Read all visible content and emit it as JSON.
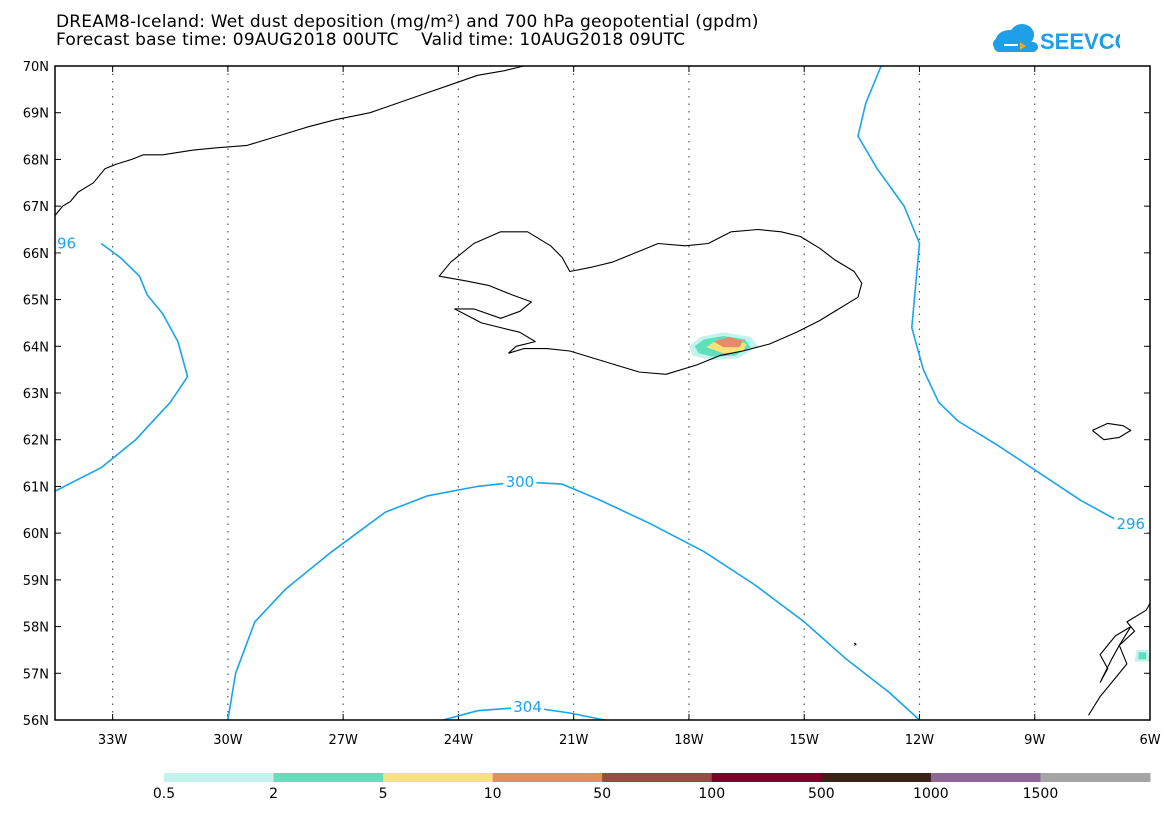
{
  "title_line1": "DREAM8-Iceland: Wet dust deposition (mg/m²) and 700 hPa geopotential (gpdm)",
  "title_line2": "Forecast base time: 09AUG2018 00UTC    Valid time: 10AUG2018 09UTC",
  "logo_text": "SEEVCCC",
  "colors": {
    "contour": "#19a4ee",
    "coast": "#000000",
    "grid": "#555555"
  },
  "map": {
    "lon_range": [
      -34.5,
      -6
    ],
    "lat_range": [
      56,
      70
    ],
    "lon_ticks": [
      {
        "value": -33,
        "label": "33W"
      },
      {
        "value": -30,
        "label": "30W"
      },
      {
        "value": -27,
        "label": "27W"
      },
      {
        "value": -24,
        "label": "24W"
      },
      {
        "value": -21,
        "label": "21W"
      },
      {
        "value": -18,
        "label": "18W"
      },
      {
        "value": -15,
        "label": "15W"
      },
      {
        "value": -12,
        "label": "12W"
      },
      {
        "value": -9,
        "label": "9W"
      },
      {
        "value": -6,
        "label": "6W"
      }
    ],
    "lat_ticks": [
      {
        "value": 70,
        "label": "70N"
      },
      {
        "value": 69,
        "label": "69N"
      },
      {
        "value": 68,
        "label": "68N"
      },
      {
        "value": 67,
        "label": "67N"
      },
      {
        "value": 66,
        "label": "66N"
      },
      {
        "value": 65,
        "label": "65N"
      },
      {
        "value": 64,
        "label": "64N"
      },
      {
        "value": 63,
        "label": "63N"
      },
      {
        "value": 62,
        "label": "62N"
      },
      {
        "value": 61,
        "label": "61N"
      },
      {
        "value": 60,
        "label": "60N"
      },
      {
        "value": 59,
        "label": "59N"
      },
      {
        "value": 58,
        "label": "58N"
      },
      {
        "value": 57,
        "label": "57N"
      },
      {
        "value": 56,
        "label": "56N"
      }
    ],
    "contours": [
      {
        "label": "96",
        "label_at": [
          -34.2,
          66.2
        ],
        "points": [
          [
            -33.3,
            66.2
          ],
          [
            -32.8,
            65.9
          ],
          [
            -32.3,
            65.5
          ],
          [
            -32.1,
            65.1
          ],
          [
            -31.7,
            64.7
          ],
          [
            -31.3,
            64.1
          ],
          [
            -31.05,
            63.35
          ],
          [
            -31.5,
            62.8
          ],
          [
            -32.4,
            62.0
          ],
          [
            -33.3,
            61.4
          ],
          [
            -34.5,
            60.9
          ]
        ]
      },
      {
        "label": "300",
        "label_at": [
          -22.4,
          61.1
        ],
        "points": [
          [
            -30.0,
            56.0
          ],
          [
            -29.8,
            57.0
          ],
          [
            -29.3,
            58.1
          ],
          [
            -28.5,
            58.8
          ],
          [
            -27.3,
            59.6
          ],
          [
            -25.9,
            60.45
          ],
          [
            -24.8,
            60.8
          ],
          [
            -23.5,
            61.0
          ],
          [
            -22.4,
            61.1
          ],
          [
            -21.3,
            61.05
          ],
          [
            -20.3,
            60.7
          ],
          [
            -19.0,
            60.2
          ],
          [
            -17.6,
            59.6
          ],
          [
            -16.3,
            58.9
          ],
          [
            -15.0,
            58.1
          ],
          [
            -13.9,
            57.3
          ],
          [
            -12.8,
            56.6
          ],
          [
            -12.0,
            56.0
          ]
        ]
      },
      {
        "label": "304",
        "label_at": [
          -22.2,
          56.28
        ],
        "points": [
          [
            -24.4,
            56.0
          ],
          [
            -23.5,
            56.2
          ],
          [
            -22.2,
            56.28
          ],
          [
            -21.1,
            56.15
          ],
          [
            -20.2,
            56.0
          ]
        ]
      },
      {
        "label": "296",
        "label_at": [
          -6.5,
          60.2
        ],
        "points": [
          [
            -13.0,
            70.0
          ],
          [
            -13.4,
            69.2
          ],
          [
            -13.6,
            68.5
          ],
          [
            -13.1,
            67.8
          ],
          [
            -12.4,
            67.0
          ],
          [
            -12.0,
            66.2
          ],
          [
            -12.1,
            65.3
          ],
          [
            -12.2,
            64.4
          ],
          [
            -11.9,
            63.5
          ],
          [
            -11.5,
            62.8
          ],
          [
            -11.0,
            62.4
          ],
          [
            -10.0,
            61.9
          ],
          [
            -8.9,
            61.3
          ],
          [
            -7.8,
            60.7
          ],
          [
            -6.8,
            60.25
          ],
          [
            -6.2,
            60.2
          ]
        ]
      }
    ],
    "dust_patches": [
      {
        "class": "0.5-2",
        "color": "#c4f2ec",
        "points": [
          [
            -18.0,
            64.0
          ],
          [
            -17.7,
            64.2
          ],
          [
            -17.1,
            64.3
          ],
          [
            -16.4,
            64.2
          ],
          [
            -16.2,
            64.0
          ],
          [
            -16.7,
            63.75
          ],
          [
            -17.4,
            63.7
          ],
          [
            -17.9,
            63.8
          ]
        ]
      },
      {
        "class": "2-5",
        "color": "#5ee0bd",
        "points": [
          [
            -17.85,
            64.0
          ],
          [
            -17.6,
            64.15
          ],
          [
            -17.1,
            64.22
          ],
          [
            -16.55,
            64.15
          ],
          [
            -16.4,
            63.98
          ],
          [
            -16.8,
            63.8
          ],
          [
            -17.4,
            63.78
          ],
          [
            -17.75,
            63.85
          ]
        ]
      },
      {
        "class": "5-10",
        "color": "#f8e27a",
        "points": [
          [
            -17.55,
            63.98
          ],
          [
            -17.3,
            64.12
          ],
          [
            -16.8,
            64.15
          ],
          [
            -16.5,
            64.05
          ],
          [
            -16.6,
            63.88
          ],
          [
            -17.1,
            63.85
          ]
        ]
      },
      {
        "class": "10-50",
        "color": "#e68b67",
        "points": [
          [
            -17.35,
            64.1
          ],
          [
            -16.95,
            64.2
          ],
          [
            -16.6,
            64.12
          ],
          [
            -16.68,
            63.98
          ],
          [
            -17.1,
            63.98
          ]
        ]
      },
      {
        "class": "0.5-2",
        "color": "#c4f2ec",
        "points": [
          [
            -6.35,
            57.5
          ],
          [
            -6.05,
            57.5
          ],
          [
            -6.0,
            57.25
          ],
          [
            -6.4,
            57.25
          ]
        ]
      },
      {
        "class": "2-5",
        "color": "#5ee0bd",
        "points": [
          [
            -6.3,
            57.45
          ],
          [
            -6.1,
            57.45
          ],
          [
            -6.1,
            57.3
          ],
          [
            -6.3,
            57.3
          ]
        ]
      }
    ],
    "coastlines": [
      {
        "name": "greenland",
        "points": [
          [
            -34.5,
            66.8
          ],
          [
            -34.3,
            67.0
          ],
          [
            -34.1,
            67.1
          ],
          [
            -33.9,
            67.3
          ],
          [
            -33.5,
            67.5
          ],
          [
            -33.2,
            67.8
          ],
          [
            -32.9,
            67.9
          ],
          [
            -32.5,
            68.0
          ],
          [
            -32.2,
            68.1
          ],
          [
            -31.7,
            68.1
          ],
          [
            -30.9,
            68.2
          ],
          [
            -30.3,
            68.25
          ],
          [
            -29.5,
            68.3
          ],
          [
            -28.7,
            68.5
          ],
          [
            -27.9,
            68.7
          ],
          [
            -27.2,
            68.85
          ],
          [
            -26.3,
            69.0
          ],
          [
            -25.6,
            69.2
          ],
          [
            -24.9,
            69.4
          ],
          [
            -24.2,
            69.6
          ],
          [
            -23.5,
            69.8
          ],
          [
            -22.8,
            69.9
          ],
          [
            -22.3,
            70.0
          ]
        ]
      },
      {
        "name": "iceland",
        "points": [
          [
            -22.7,
            63.85
          ],
          [
            -22.3,
            63.95
          ],
          [
            -21.7,
            63.95
          ],
          [
            -21.1,
            63.9
          ],
          [
            -20.5,
            63.75
          ],
          [
            -19.9,
            63.6
          ],
          [
            -19.3,
            63.45
          ],
          [
            -18.6,
            63.4
          ],
          [
            -17.8,
            63.6
          ],
          [
            -17.2,
            63.8
          ],
          [
            -16.6,
            63.9
          ],
          [
            -15.9,
            64.05
          ],
          [
            -15.2,
            64.3
          ],
          [
            -14.6,
            64.55
          ],
          [
            -14.1,
            64.8
          ],
          [
            -13.6,
            65.05
          ],
          [
            -13.5,
            65.35
          ],
          [
            -13.7,
            65.6
          ],
          [
            -14.2,
            65.85
          ],
          [
            -14.6,
            66.1
          ],
          [
            -15.1,
            66.35
          ],
          [
            -15.6,
            66.45
          ],
          [
            -16.2,
            66.5
          ],
          [
            -16.9,
            66.45
          ],
          [
            -17.5,
            66.2
          ],
          [
            -18.1,
            66.15
          ],
          [
            -18.8,
            66.2
          ],
          [
            -19.4,
            66.0
          ],
          [
            -20.0,
            65.8
          ],
          [
            -20.5,
            65.7
          ],
          [
            -21.1,
            65.6
          ],
          [
            -21.3,
            65.9
          ],
          [
            -21.6,
            66.15
          ],
          [
            -22.2,
            66.45
          ],
          [
            -22.9,
            66.45
          ],
          [
            -23.6,
            66.2
          ],
          [
            -24.2,
            65.8
          ],
          [
            -24.5,
            65.5
          ],
          [
            -23.8,
            65.4
          ],
          [
            -23.2,
            65.3
          ],
          [
            -22.6,
            65.1
          ],
          [
            -22.1,
            64.95
          ],
          [
            -22.4,
            64.75
          ],
          [
            -22.9,
            64.6
          ],
          [
            -23.6,
            64.8
          ],
          [
            -24.1,
            64.8
          ],
          [
            -23.4,
            64.5
          ],
          [
            -22.4,
            64.3
          ],
          [
            -22.0,
            64.1
          ],
          [
            -22.5,
            64.0
          ],
          [
            -22.7,
            63.85
          ]
        ]
      },
      {
        "name": "faroe",
        "points": [
          [
            -7.5,
            62.2
          ],
          [
            -7.1,
            62.35
          ],
          [
            -6.7,
            62.3
          ],
          [
            -6.5,
            62.2
          ],
          [
            -6.8,
            62.05
          ],
          [
            -7.2,
            62.0
          ],
          [
            -7.5,
            62.2
          ]
        ]
      },
      {
        "name": "scotland",
        "points": [
          [
            -7.6,
            56.1
          ],
          [
            -7.3,
            56.5
          ],
          [
            -6.9,
            56.9
          ],
          [
            -6.6,
            57.2
          ],
          [
            -6.8,
            57.6
          ],
          [
            -6.4,
            57.9
          ],
          [
            -6.6,
            58.1
          ],
          [
            -6.1,
            58.35
          ],
          [
            -6.0,
            58.5
          ]
        ]
      },
      {
        "name": "outer-hebrides",
        "points": [
          [
            -7.3,
            56.8
          ],
          [
            -7.1,
            57.1
          ],
          [
            -7.3,
            57.4
          ],
          [
            -6.9,
            57.8
          ],
          [
            -6.5,
            58.0
          ],
          [
            -6.8,
            57.6
          ],
          [
            -7.0,
            57.3
          ],
          [
            -7.3,
            56.8
          ]
        ]
      },
      {
        "name": "rockall",
        "points": [
          [
            -13.7,
            57.6
          ],
          [
            -13.65,
            57.62
          ],
          [
            -13.7,
            57.65
          ]
        ]
      }
    ]
  },
  "colorbar": {
    "segments": [
      {
        "color": "#c4f2ec",
        "label": "0.5"
      },
      {
        "color": "#5ee0bd",
        "label": "2"
      },
      {
        "color": "#f8e27a",
        "label": "5"
      },
      {
        "color": "#e68b67",
        "label": "10"
      },
      {
        "color": "#9c4843",
        "label": "50"
      },
      {
        "color": "#7e0227",
        "label": "100"
      },
      {
        "color": "#3a2216",
        "label": "500"
      },
      {
        "color": "#8c6795",
        "label": "1000"
      },
      {
        "color": "#a5a5a5",
        "label": "1500"
      }
    ]
  }
}
